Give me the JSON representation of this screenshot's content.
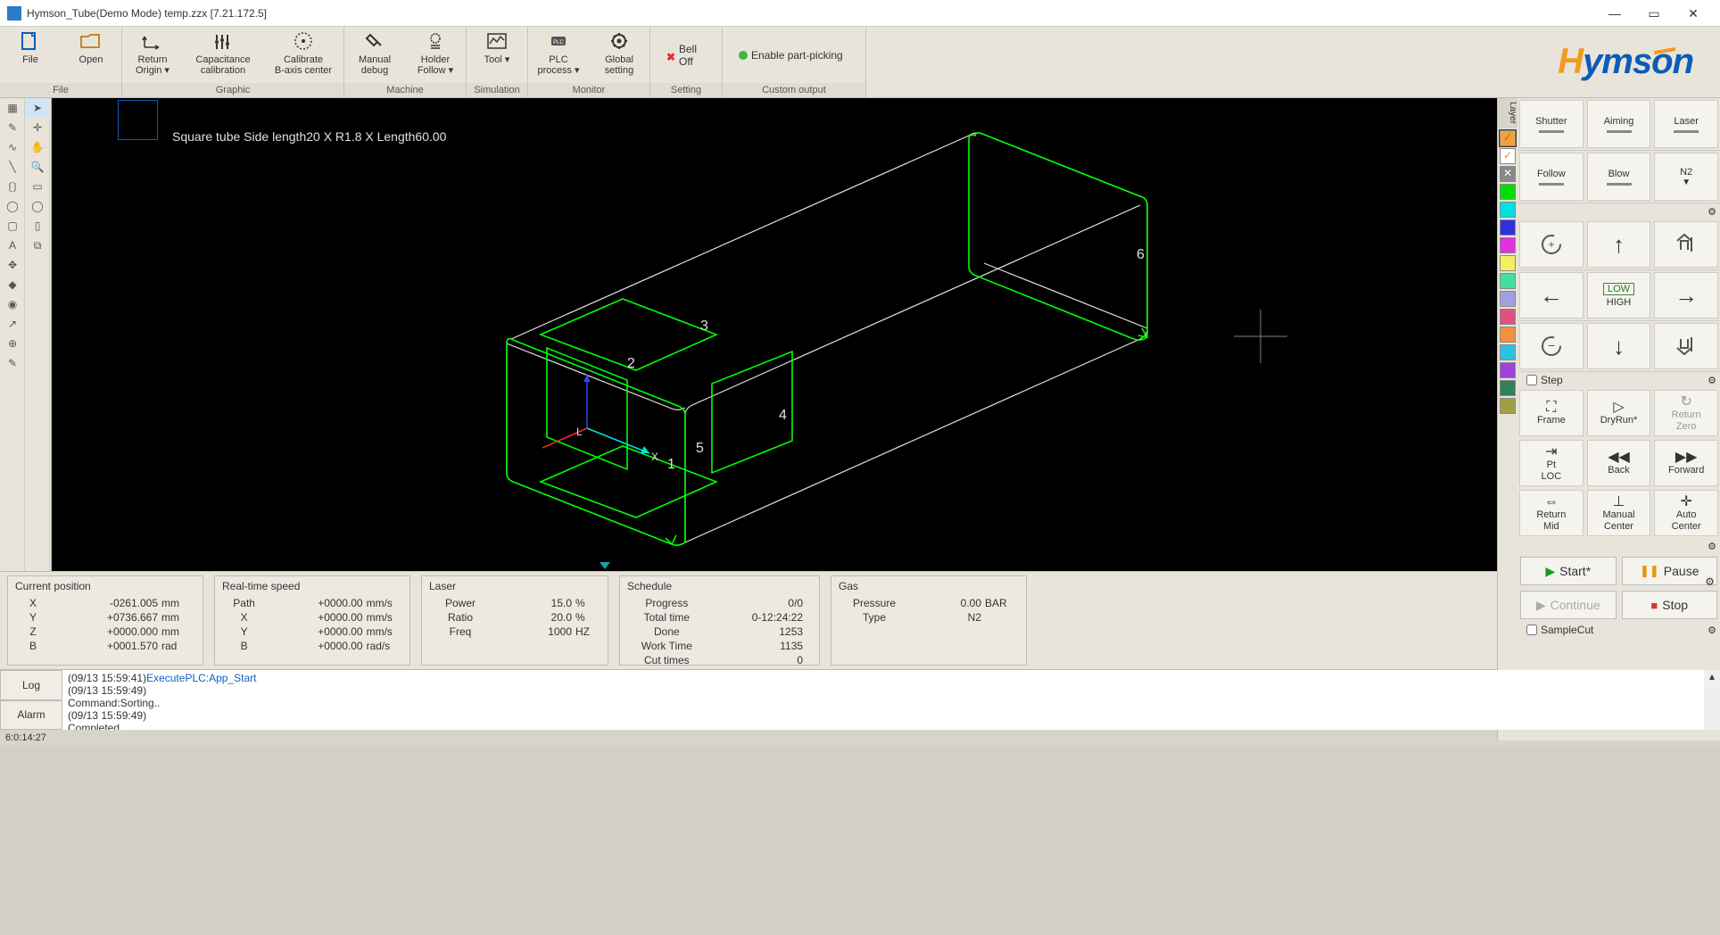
{
  "window": {
    "title": "Hymson_Tube(Demo Mode) temp.zzx  [7.21.172.5]"
  },
  "brand": "Hymsᴏn",
  "ribbon": {
    "file": {
      "label": "File",
      "items": [
        {
          "l": "File"
        },
        {
          "l": "Open"
        }
      ]
    },
    "graphic": {
      "label": "Graphic",
      "items": [
        {
          "l1": "Return",
          "l2": "Origin ▾"
        },
        {
          "l1": "Capacitance",
          "l2": "calibration"
        },
        {
          "l1": "Calibrate",
          "l2": "B-axis center"
        }
      ]
    },
    "machine": {
      "label": "Machine",
      "items": [
        {
          "l1": "Manual",
          "l2": "debug"
        },
        {
          "l1": "Holder",
          "l2": "Follow ▾"
        }
      ]
    },
    "simulation": {
      "label": "Simulation",
      "items": [
        {
          "l": "Tool ▾"
        }
      ]
    },
    "monitor": {
      "label": "Monitor",
      "items": [
        {
          "l1": "PLC",
          "l2": "process ▾"
        },
        {
          "l1": "Global",
          "l2": "setting"
        }
      ]
    },
    "setting": {
      "label": "Setting",
      "bell": "Bell Off",
      "pick": "Enable part-picking"
    },
    "custom": {
      "label": "Custom output"
    }
  },
  "viewport": {
    "desc": "Square tube Side length20 X R1.8 X Length60.00",
    "labels": [
      "1",
      "2",
      "3",
      "4",
      "5",
      "6"
    ],
    "tube_color": "#e0e0e0",
    "cut_color": "#00ff00",
    "crosshair_color": "#808080"
  },
  "layer_swatches": [
    "#f2a23c",
    "#f2a23c",
    "#ffffff",
    "#00e000",
    "#00e0e0",
    "#3030e0",
    "#e030e0",
    "#f2f060",
    "#40e0a0",
    "#a0a0e0",
    "#e05080",
    "#f29040",
    "#30c0e0",
    "#a040e0",
    "#308060",
    "#a0a040"
  ],
  "ctl": {
    "row1": [
      "Shutter",
      "Aiming",
      "Laser"
    ],
    "row2": [
      "Follow",
      "Blow",
      "N2"
    ],
    "step": "Step",
    "low": "LOW",
    "high": "HIGH",
    "run1": [
      {
        "l": "Frame",
        "i": "⛶"
      },
      {
        "l": "DryRun*",
        "i": "▷"
      },
      {
        "l": "Return Zero",
        "i": "↻",
        "d": true
      }
    ],
    "run2": [
      {
        "l": "Pt LOC",
        "i": "⇥"
      },
      {
        "l": "Back",
        "i": "◀◀"
      },
      {
        "l": "Forward",
        "i": "▶▶"
      }
    ],
    "run3": [
      {
        "l": "Return Mid",
        "i": "⇔"
      },
      {
        "l": "Manual Center",
        "i": "⊥"
      },
      {
        "l": "Auto Center",
        "i": "✛"
      }
    ],
    "play": {
      "start": "Start*",
      "pause": "Pause",
      "cont": "Continue",
      "stop": "Stop"
    },
    "sample": "SampleCut"
  },
  "status": {
    "pos": {
      "h": "Current position",
      "rows": [
        [
          "X",
          "-0261.005",
          "mm"
        ],
        [
          "Y",
          "+0736.667",
          "mm"
        ],
        [
          "Z",
          "+0000.000",
          "mm"
        ],
        [
          "B",
          "+0001.570",
          "rad"
        ]
      ]
    },
    "speed": {
      "h": "Real-time speed",
      "rows": [
        [
          "Path",
          "+0000.00",
          "mm/s"
        ],
        [
          "X",
          "+0000.00",
          "mm/s"
        ],
        [
          "Y",
          "+0000.00",
          "mm/s"
        ],
        [
          "B",
          "+0000.00",
          "rad/s"
        ]
      ]
    },
    "laser": {
      "h": "Laser",
      "rows": [
        [
          "Power",
          "15.0",
          "%"
        ],
        [
          "Ratio",
          "20.0",
          "%"
        ],
        [
          "Freq",
          "1000",
          "HZ"
        ]
      ]
    },
    "sched": {
      "h": "Schedule",
      "rows": [
        [
          "Progress",
          "0/0",
          ""
        ],
        [
          "Total time",
          "0-12:24:22",
          ""
        ],
        [
          "Done",
          "1253",
          ""
        ],
        [
          "Work Time",
          "1135",
          ""
        ],
        [
          "Cut times",
          "0",
          ""
        ]
      ]
    },
    "gas": {
      "h": "Gas",
      "rows": [
        [
          "Pressure",
          "0.00",
          "BAR"
        ],
        [
          "Type",
          "N2",
          ""
        ]
      ]
    }
  },
  "log": {
    "tabs": [
      "Log",
      "Alarm"
    ],
    "lines": [
      {
        "t": "(09/13 15:59:41)",
        "m": "ExecutePLC:App_Start",
        "c": "blue"
      },
      {
        "t": "(09/13 15:59:49)",
        "m": ""
      },
      {
        "t": "",
        "m": "Command:Sorting.."
      },
      {
        "t": "(09/13 15:59:49)",
        "m": ""
      },
      {
        "t": "",
        "m": "Completed"
      }
    ]
  },
  "statusbar": "6:0:14:27"
}
